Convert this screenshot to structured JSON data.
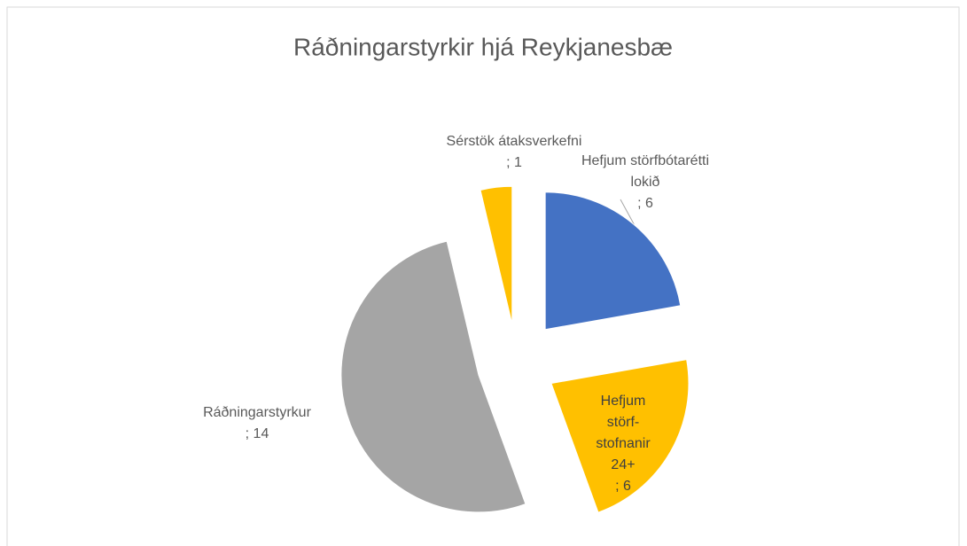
{
  "chart_data": {
    "type": "pie",
    "title": "Ráðningarstyrkir hjá Reykjanesbæ",
    "categories": [
      "Hefjum störfbótarétti lokið",
      "Hefjum störf-stofnanir 24+",
      "Ráðningarstyrkur",
      "Sérstök átaksverkefni"
    ],
    "values": [
      6,
      6,
      14,
      1
    ],
    "colors": [
      "#4472c4",
      "#ffc000",
      "#a5a5a5",
      "#ffc000"
    ],
    "label_separator": "; "
  }
}
